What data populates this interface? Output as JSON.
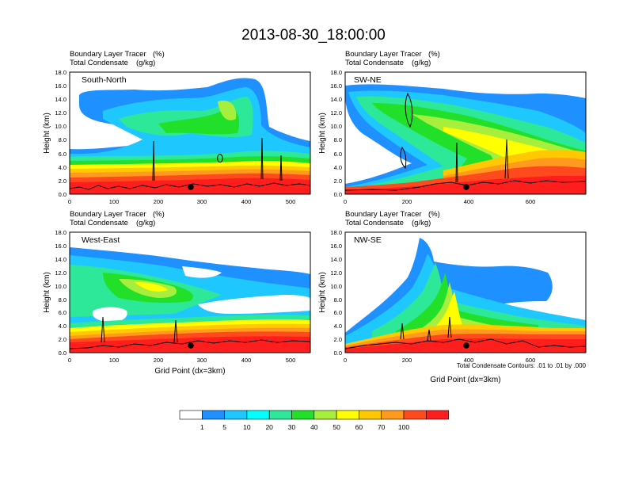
{
  "figure": {
    "title": "2013-08-30_18:00:00",
    "colorbar": {
      "ticks": [
        "1",
        "5",
        "10",
        "20",
        "30",
        "40",
        "50",
        "60",
        "70",
        "100"
      ],
      "colors": [
        "#ffffff",
        "#1e90ff",
        "#1ec8ff",
        "#00ffff",
        "#2ee89a",
        "#22e02a",
        "#a8ee3c",
        "#ffff00",
        "#ffc800",
        "#ff9a1e",
        "#ff4a1e",
        "#ff1e1e"
      ]
    },
    "footnote": "Total Condensate Contours: .01 to .01 by .000"
  },
  "chart_data": [
    {
      "type": "heatmap",
      "panel_label": "South-North",
      "left_title_1": "Boundary Layer Tracer",
      "left_unit_1": "(%)",
      "left_title_2": "Total Condensate",
      "left_unit_2": "(g/kg)",
      "ylabel": "Height (km)",
      "xlabel": "",
      "xlim": [
        0,
        545
      ],
      "ylim": [
        0,
        18
      ],
      "x_ticks": [
        "0",
        "100",
        "200",
        "300",
        "400",
        "500"
      ],
      "y_ticks": [
        "0.0",
        "2.0",
        "4.0",
        "6.0",
        "8.0",
        "10.0",
        "12.0",
        "14.0",
        "16.0",
        "18.0"
      ],
      "marker_x": 275
    },
    {
      "type": "heatmap",
      "panel_label": "SW-NE",
      "left_title_1": "Boundary Layer Tracer",
      "left_unit_1": "(%)",
      "left_title_2": "Total Condensate",
      "left_unit_2": "(g/kg)",
      "ylabel": "Height (km)",
      "xlabel": "",
      "xlim": [
        0,
        770
      ],
      "ylim": [
        0,
        18
      ],
      "x_ticks": [
        "0",
        "200",
        "400",
        "600"
      ],
      "y_ticks": [
        "0.0",
        "2.0",
        "4.0",
        "6.0",
        "8.0",
        "10.0",
        "12.0",
        "14.0",
        "16.0",
        "18.0"
      ],
      "marker_x": 390
    },
    {
      "type": "heatmap",
      "panel_label": "West-East",
      "left_title_1": "Boundary Layer Tracer",
      "left_unit_1": "(%)",
      "left_title_2": "Total Condensate",
      "left_unit_2": "(g/kg)",
      "ylabel": "Height (km)",
      "xlabel": "Grid Point (dx=3km)",
      "xlim": [
        0,
        545
      ],
      "ylim": [
        0,
        18
      ],
      "x_ticks": [
        "0",
        "100",
        "200",
        "300",
        "400",
        "500"
      ],
      "y_ticks": [
        "0.0",
        "2.0",
        "4.0",
        "6.0",
        "8.0",
        "10.0",
        "12.0",
        "14.0",
        "16.0",
        "18.0"
      ],
      "marker_x": 275
    },
    {
      "type": "heatmap",
      "panel_label": "NW-SE",
      "left_title_1": "Boundary Layer Tracer",
      "left_unit_1": "(%)",
      "left_title_2": "Total Condensate",
      "left_unit_2": "(g/kg)",
      "ylabel": "Height (km)",
      "xlabel": "Grid Point (dx=3km)",
      "xlim": [
        0,
        770
      ],
      "ylim": [
        0,
        18
      ],
      "x_ticks": [
        "0",
        "200",
        "400",
        "600"
      ],
      "y_ticks": [
        "0.0",
        "2.0",
        "4.0",
        "6.0",
        "8.0",
        "10.0",
        "12.0",
        "14.0",
        "16.0",
        "18.0"
      ],
      "marker_x": 390
    }
  ]
}
